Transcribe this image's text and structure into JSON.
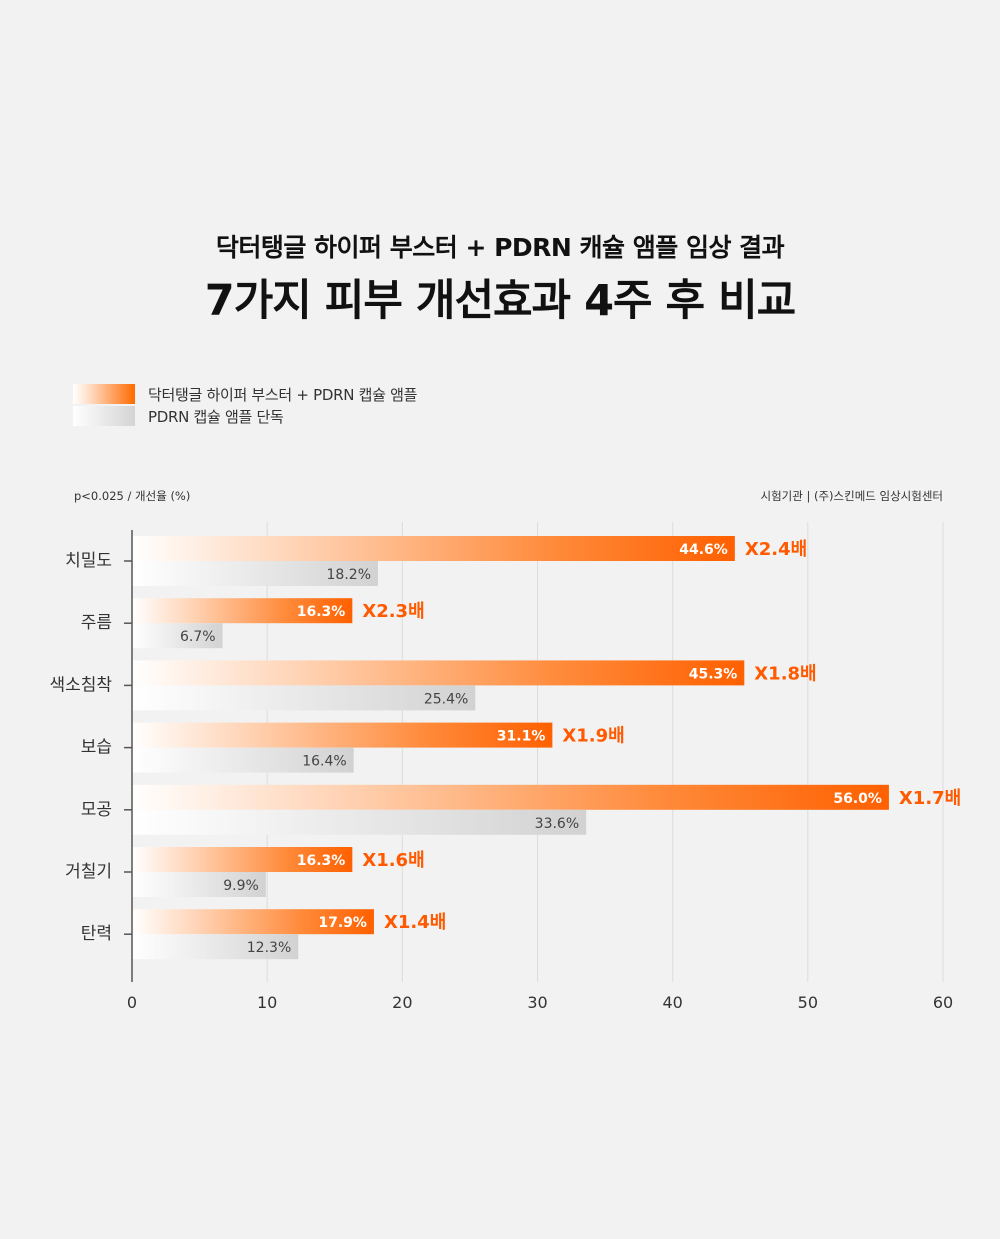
{
  "header": {
    "subtitle": "닥터탱글 하이퍼 부스터 + PDRN 캐슐 앰플 임상 결과",
    "title": "7가지 피부 개선효과 4주 후 비교"
  },
  "legend": {
    "items": [
      {
        "label": "닥터탱글 하이퍼 부스터 + PDRN 캡슐 앰플",
        "swatch": "orange"
      },
      {
        "label": "PDRN 캡슐 앰플 단독",
        "swatch": "gray"
      }
    ]
  },
  "notes": {
    "left": "p<0.025  / 개선율 (%)",
    "right": "시험기관  |  (주)스킨메드 임상시험센터"
  },
  "colors": {
    "accent": "#ff6a00",
    "accent_text": "#ff5a00",
    "gray_bar": "#d6d6d6"
  },
  "chart_data": {
    "type": "bar",
    "orientation": "horizontal",
    "categories": [
      "치밀도",
      "주름",
      "색소침착",
      "보습",
      "모공",
      "거칠기",
      "탄력"
    ],
    "series": [
      {
        "name": "닥터탱글 하이퍼 부스터 + PDRN 캡슐 앰플",
        "values": [
          44.6,
          16.3,
          45.3,
          31.1,
          56.0,
          16.3,
          17.9
        ],
        "labels": [
          "44.6%",
          "16.3%",
          "45.3%",
          "31.1%",
          "56.0%",
          "16.3%",
          "17.9%"
        ]
      },
      {
        "name": "PDRN 캡슐 앰플 단독",
        "values": [
          18.2,
          6.7,
          25.4,
          16.4,
          33.6,
          9.9,
          12.3
        ],
        "labels": [
          "18.2%",
          "6.7%",
          "25.4%",
          "16.4%",
          "33.6%",
          "9.9%",
          "12.3%"
        ]
      }
    ],
    "ratios": [
      "X2.4배",
      "X2.3배",
      "X1.8배",
      "X1.9배",
      "X1.7배",
      "X1.6배",
      "X1.4배"
    ],
    "xlim": [
      0,
      60
    ],
    "xticks": [
      "0",
      "10",
      "20",
      "30",
      "40",
      "50",
      "60"
    ],
    "grid": true,
    "legend_position": "top-left"
  }
}
